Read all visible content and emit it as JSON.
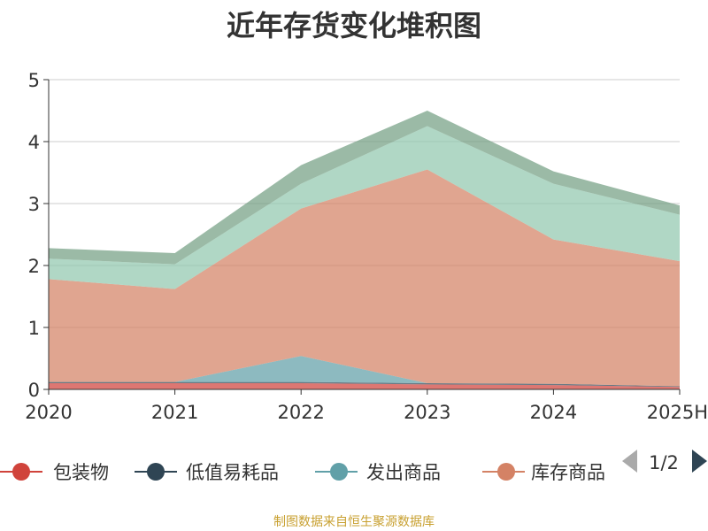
{
  "chart_data": {
    "type": "area",
    "stacked": true,
    "title": "近年存货变化堆积图",
    "xlabel": "",
    "ylabel": "",
    "categories": [
      "2020",
      "2021",
      "2022",
      "2023",
      "2024",
      "2025H"
    ],
    "ylim": [
      0,
      5
    ],
    "yticks": [
      "0",
      "1",
      "2",
      "3",
      "4",
      "5"
    ],
    "grid": true,
    "legend_position": "bottom",
    "series": [
      {
        "name": "包装物",
        "values": [
          0.1,
          0.1,
          0.1,
          0.08,
          0.07,
          0.04
        ],
        "color": "#d0433b"
      },
      {
        "name": "低值易耗品",
        "values": [
          0.02,
          0.02,
          0.02,
          0.02,
          0.02,
          0.01
        ],
        "color": "#2f4554"
      },
      {
        "name": "发出商品",
        "values": [
          0.0,
          0.0,
          0.42,
          0.0,
          0.0,
          0.0
        ],
        "color": "#61a0a8"
      },
      {
        "name": "库存商品",
        "values": [
          1.66,
          1.5,
          2.38,
          3.45,
          2.33,
          2.02
        ],
        "color": "#d48265"
      },
      {
        "name": "",
        "values": [
          0.33,
          0.4,
          0.4,
          0.7,
          0.9,
          0.75
        ],
        "color": "#91c7ae"
      },
      {
        "name": "",
        "values": [
          0.17,
          0.18,
          0.3,
          0.25,
          0.2,
          0.15
        ],
        "color": "#749f83"
      }
    ],
    "legend_visible_names": [
      "包装物",
      "低值易耗品",
      "发出商品",
      "库存商品"
    ],
    "legend_page": "1/2"
  },
  "footer": {
    "source": "制图数据来自恒生聚源数据库"
  }
}
